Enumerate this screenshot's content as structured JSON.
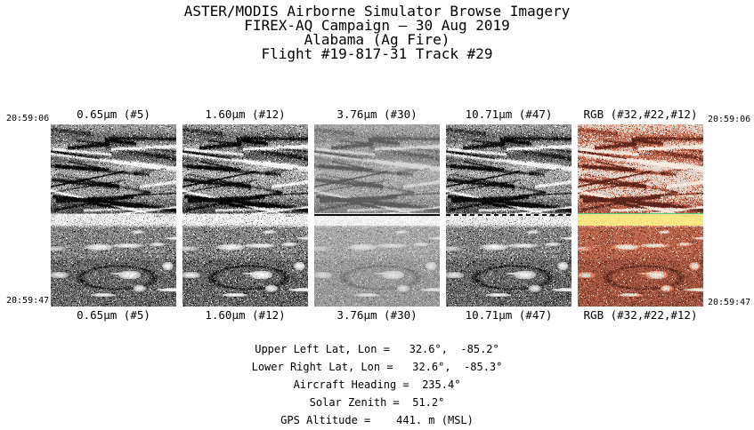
{
  "header": {
    "lines": [
      "ASTER/MODIS Airborne Simulator Browse Imagery",
      "FIREX-AQ Campaign – 30 Aug 2019",
      "Alabama (Ag Fire)",
      "Flight #19-817-31 Track #29"
    ]
  },
  "timestamps": {
    "start": "20:59:06",
    "end": "20:59:47"
  },
  "strips": [
    {
      "label": "0.65μm (#5)",
      "kind": "grayscale"
    },
    {
      "label": "1.60μm (#12)",
      "kind": "grayscale"
    },
    {
      "label": "3.76μm (#30)",
      "kind": "grayscale"
    },
    {
      "label": "10.71μm (#47)",
      "kind": "grayscale"
    },
    {
      "label": "RGB (#32,#22,#12)",
      "kind": "rgb"
    }
  ],
  "footer": {
    "lines": [
      "Upper Left Lat, Lon =   32.6°,  -85.2°",
      "Lower Right Lat, Lon =   32.6°,  -85.3°",
      "Aircraft Heading =  235.4°",
      "Solar Zenith =  51.2°",
      "GPS Altitude =    441. m (MSL)"
    ]
  },
  "colors": {
    "background": "#ffffff",
    "text": "#000000",
    "fire_line_green": "#50c878",
    "fire_band_yellow": "#f0dc80",
    "terrain_red": "#963c28"
  }
}
